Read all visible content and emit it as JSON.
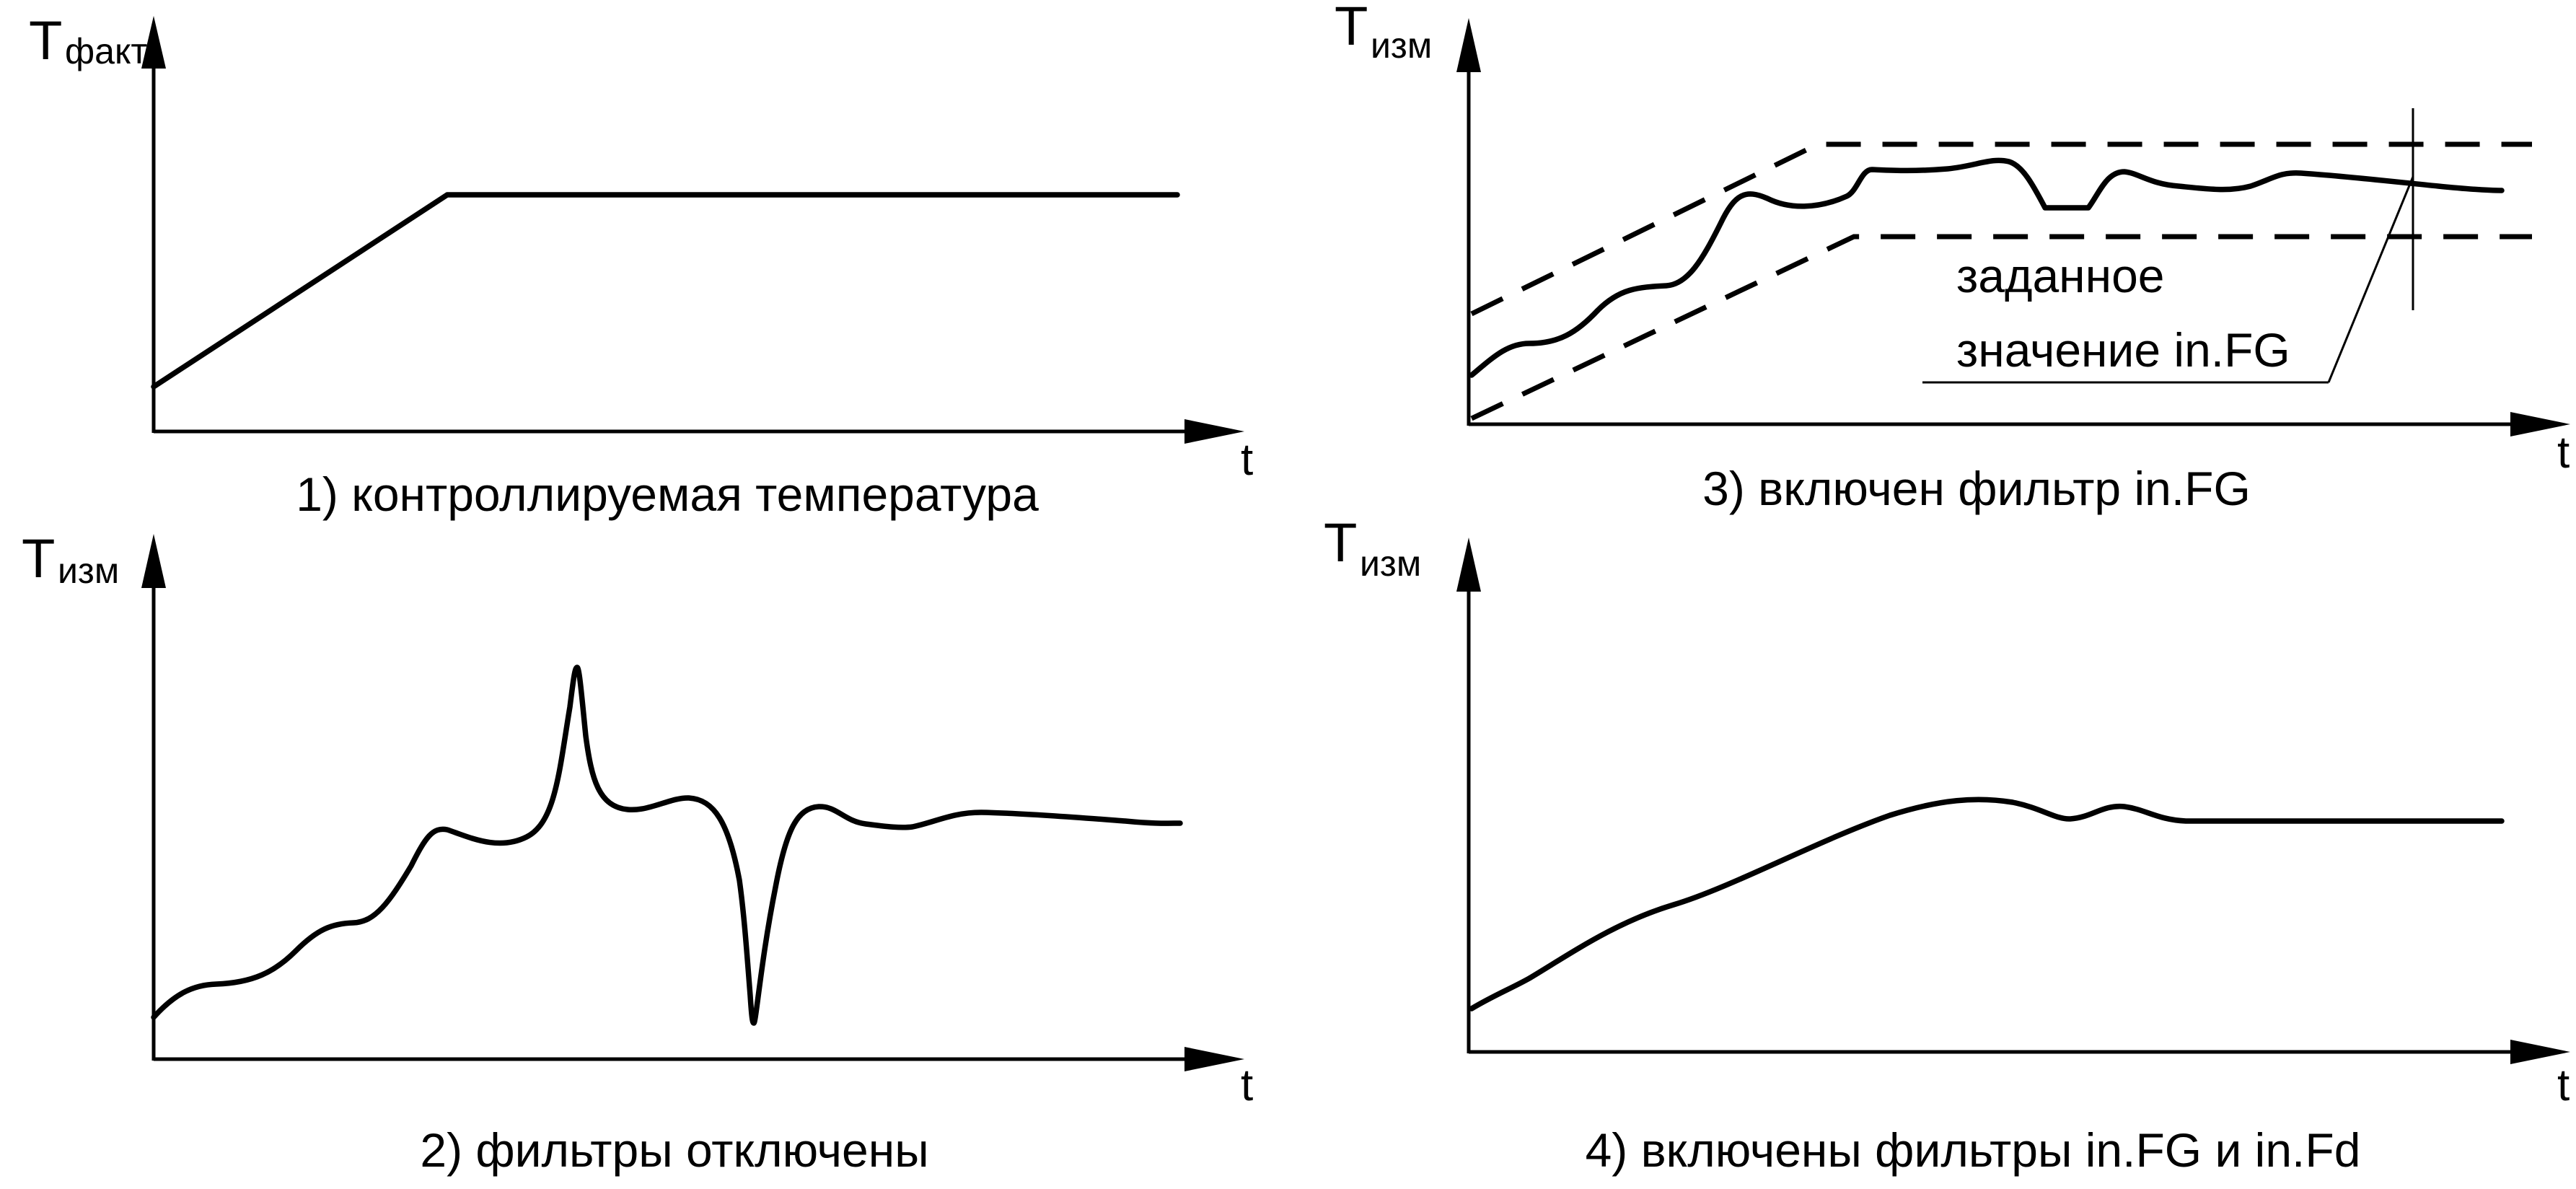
{
  "panels": [
    {
      "caption": "1) контроллируемая температура",
      "y_axis": {
        "symbol": "T",
        "subscript": "факт"
      },
      "x_axis": {
        "label": "t"
      }
    },
    {
      "caption": "2) фильтры отключены",
      "y_axis": {
        "symbol": "T",
        "subscript": "изм"
      },
      "x_axis": {
        "label": "t"
      }
    },
    {
      "caption": "3) включен фильтр in.FG",
      "y_axis": {
        "symbol": "T",
        "subscript": "изм"
      },
      "x_axis": {
        "label": "t"
      },
      "annotation": {
        "line1": "заданное",
        "line2": "значение in.FG"
      }
    },
    {
      "caption": "4) включены фильтры in.FG и in.Fd",
      "y_axis": {
        "symbol": "T",
        "subscript": "изм"
      },
      "x_axis": {
        "label": "t"
      }
    }
  ]
}
